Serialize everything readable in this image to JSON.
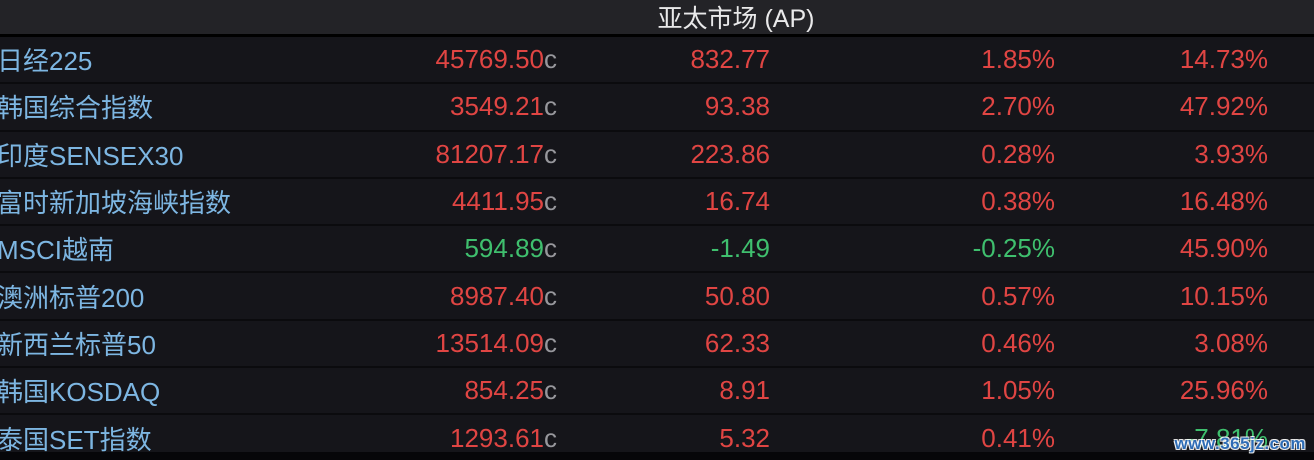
{
  "header": {
    "title": "亚太市场 (AP)"
  },
  "watermark": "www.365jz.com",
  "colors": {
    "up": "#e04543",
    "down": "#3fbf6e",
    "label": "#7db6e2",
    "suffix": "#97979c"
  },
  "table": {
    "rows": [
      {
        "name": "日经225",
        "price": "45769.50",
        "suffix": "c",
        "change": "832.77",
        "pct": "1.85%",
        "pct2": "14.73%",
        "trend": "up",
        "trend2": "up"
      },
      {
        "name": "韩国综合指数",
        "price": "3549.21",
        "suffix": "c",
        "change": "93.38",
        "pct": "2.70%",
        "pct2": "47.92%",
        "trend": "up",
        "trend2": "up"
      },
      {
        "name": "印度SENSEX30",
        "price": "81207.17",
        "suffix": "c",
        "change": "223.86",
        "pct": "0.28%",
        "pct2": "3.93%",
        "trend": "up",
        "trend2": "up"
      },
      {
        "name": "富时新加坡海峡指数",
        "price": "4411.95",
        "suffix": "c",
        "change": "16.74",
        "pct": "0.38%",
        "pct2": "16.48%",
        "trend": "up",
        "trend2": "up"
      },
      {
        "name": "MSCI越南",
        "price": "594.89",
        "suffix": "c",
        "change": "-1.49",
        "pct": "-0.25%",
        "pct2": "45.90%",
        "trend": "down",
        "trend2": "up"
      },
      {
        "name": "澳洲标普200",
        "price": "8987.40",
        "suffix": "c",
        "change": "50.80",
        "pct": "0.57%",
        "pct2": "10.15%",
        "trend": "up",
        "trend2": "up"
      },
      {
        "name": "新西兰标普50",
        "price": "13514.09",
        "suffix": "c",
        "change": "62.33",
        "pct": "0.46%",
        "pct2": "3.08%",
        "trend": "up",
        "trend2": "up"
      },
      {
        "name": "韩国KOSDAQ",
        "price": "854.25",
        "suffix": "c",
        "change": "8.91",
        "pct": "1.05%",
        "pct2": "25.96%",
        "trend": "up",
        "trend2": "up"
      },
      {
        "name": "泰国SET指数",
        "price": "1293.61",
        "suffix": "c",
        "change": "5.32",
        "pct": "0.41%",
        "pct2": "-7.81%",
        "trend": "up",
        "trend2": "down"
      }
    ]
  }
}
